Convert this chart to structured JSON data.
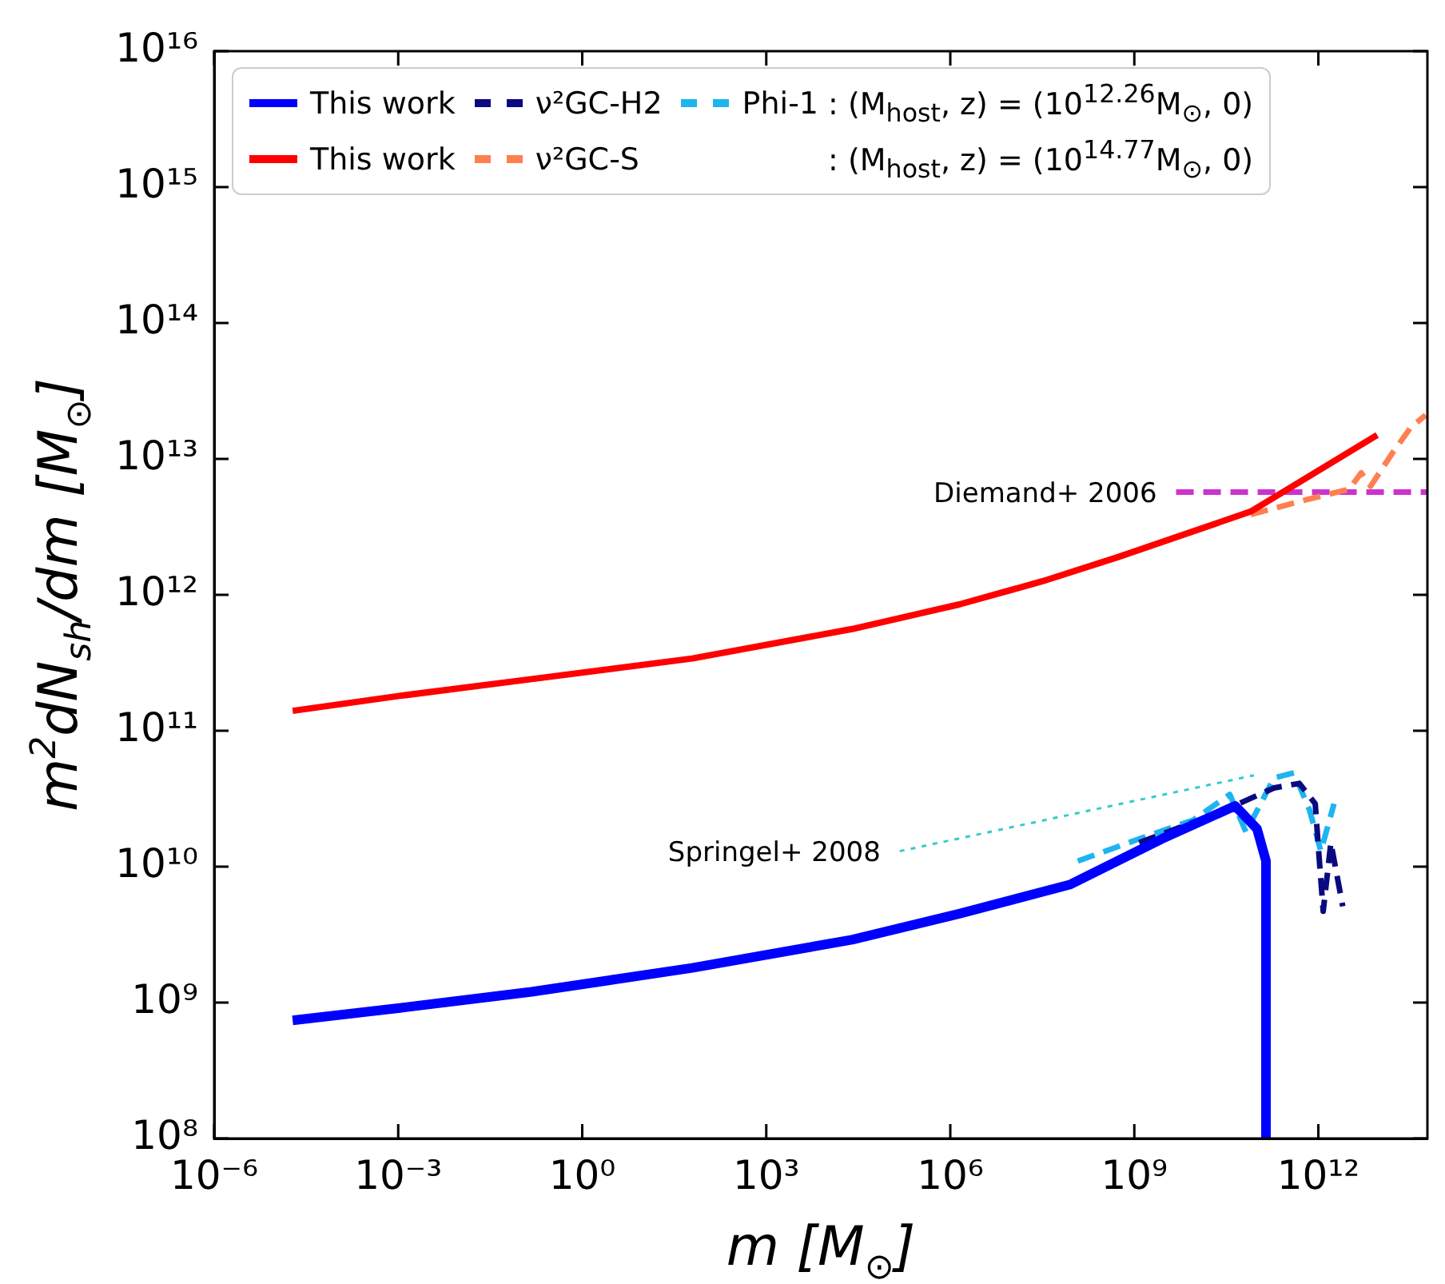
{
  "chart_data": {
    "type": "line",
    "xlabel": "m [M$_{⊙}$]",
    "ylabel": "m$^{2}$dN$_{sh}$/dm [M$_{⊙}$]",
    "log": "xy",
    "grid": false,
    "legend": "top left",
    "xlim": [
      1e-06,
      60000000000000.0
    ],
    "ylim": [
      100000000.0,
      1e+16
    ],
    "xticks": [
      {
        "value": 1e-06,
        "label": "10⁻⁶"
      },
      {
        "value": 0.001,
        "label": "10⁻³"
      },
      {
        "value": 1,
        "label": "10⁰"
      },
      {
        "value": 1000.0,
        "label": "10³"
      },
      {
        "value": 1000000.0,
        "label": "10⁶"
      },
      {
        "value": 1000000000.0,
        "label": "10⁹"
      },
      {
        "value": 1000000000000.0,
        "label": "10¹²"
      }
    ],
    "yticks": [
      {
        "value": 100000000.0,
        "label": "10⁸"
      },
      {
        "value": 1000000000.0,
        "label": "10⁹"
      },
      {
        "value": 10000000000.0,
        "label": "10¹⁰"
      },
      {
        "value": 100000000000.0,
        "label": "10¹¹"
      },
      {
        "value": 1000000000000.0,
        "label": "10¹²"
      },
      {
        "value": 10000000000000.0,
        "label": "10¹³"
      },
      {
        "value": 100000000000000.0,
        "label": "10¹⁴"
      },
      {
        "value": 1000000000000000.0,
        "label": "10¹⁵"
      },
      {
        "value": 1e+16,
        "label": "10¹⁶"
      }
    ],
    "annotations": [
      ": (M$_{host}$, z) = (10$^{12.26}$M$_{⊙}$, 0)",
      ": (M$_{host}$, z) = (10$^{14.77}$M$_{⊙}$, 0)",
      {
        "text": "Diemand+ 2006",
        "x": 4800000000.0,
        "y": 5700000000000.0
      },
      {
        "text": "Springel+ 2008",
        "x": 150000.0,
        "y": 13000000000.0
      }
    ],
    "series": [
      {
        "name": "This work",
        "color": "#0000ff",
        "line_style": "solid",
        "x": [
          1.9e-05,
          0.001,
          0.15,
          62,
          25000.0,
          1400000.0,
          91000000.0,
          2800000000.0,
          44000000000.0,
          100000000000.0,
          140000000000.0,
          140000000000.0
        ],
        "values": [
          740000000.0,
          910000000.0,
          1200000000.0,
          1800000000.0,
          2900000000.0,
          4500000000.0,
          7400000000.0,
          16000000000.0,
          28000000000.0,
          19000000000.0,
          11000000000.0,
          100000000.0
        ]
      },
      {
        "name": "This work",
        "color": "#ff0000",
        "line_style": "solid",
        "x": [
          1.9e-05,
          0.001,
          0.15,
          62,
          25000.0,
          1400000.0,
          32000000.0,
          550000000.0,
          79000000000.0,
          9100000000000.0
        ],
        "values": [
          140000000000.0,
          180000000000.0,
          240000000000.0,
          340000000000.0,
          560000000000.0,
          850000000000.0,
          1260000000000.0,
          1900000000000.0,
          4100000000000.0,
          15000000000000.0
        ]
      },
      {
        "name": "ν²GC-H2",
        "color": "#0a0a80",
        "line_style": "dashed",
        "x": [
          1200000000.0,
          24000000000.0,
          190000000000.0,
          490000000000.0,
          890000000000.0,
          1000000000000.0,
          1200000000000.0,
          1600000000000.0,
          2500000000000.0
        ],
        "values": [
          15000000000.0,
          25000000000.0,
          38000000000.0,
          41000000000.0,
          29000000000.0,
          14000000000.0,
          4700000000.0,
          15000000000.0,
          5100000000.0
        ]
      },
      {
        "name": "ν²GC-S",
        "color": "#ff7f50",
        "line_style": "dashed",
        "x": [
          79000000000.0,
          630000000000.0,
          3200000000000.0,
          5000000000000.0,
          7100000000000.0,
          16000000000000.0,
          32000000000000.0,
          56000000000000.0
        ],
        "values": [
          3900000000000.0,
          5000000000000.0,
          6000000000000.0,
          7900000000000.0,
          6300000000000.0,
          11000000000000.0,
          17000000000000.0,
          21000000000000.0
        ]
      },
      {
        "name": "Phi-1",
        "color": "#1eb4f0",
        "line_style": "dashed",
        "x": [
          120000000.0,
          1200000000.0,
          9100000000.0,
          36000000000.0,
          66000000000.0,
          190000000000.0,
          400000000000.0,
          720000000000.0,
          1100000000000.0,
          1800000000000.0
        ],
        "values": [
          11000000000.0,
          16000000000.0,
          22000000000.0,
          34000000000.0,
          18000000000.0,
          45000000000.0,
          49000000000.0,
          26000000000.0,
          13000000000.0,
          29000000000.0
        ]
      },
      {
        "color": "#cc33cc",
        "line_style": "dashed",
        "x": [
          4800000000.0,
          60000000000000.0
        ],
        "values": [
          5700000000000.0,
          5700000000000.0
        ]
      },
      {
        "color": "#33cccc",
        "line_style": "dotted",
        "x": [
          150000.0,
          89000000000.0
        ],
        "values": [
          13000000000.0,
          47000000000.0
        ]
      }
    ]
  }
}
